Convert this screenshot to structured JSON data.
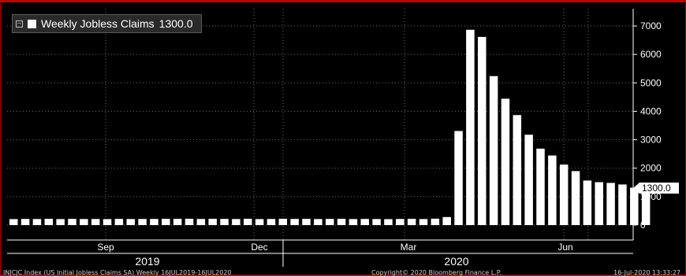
{
  "chart_data": {
    "type": "bar",
    "series": [
      {
        "name": "Weekly Jobless Claims",
        "values": [
          210,
          215,
          212,
          220,
          210,
          218,
          212,
          214,
          210,
          216,
          212,
          214,
          215,
          220,
          218,
          222,
          214,
          220,
          216,
          212,
          222,
          210,
          214,
          222,
          215,
          218,
          212,
          216,
          220,
          211,
          215,
          212,
          208,
          214,
          218,
          211,
          225,
          282,
          3307,
          6867,
          6615,
          5237,
          4442,
          3867,
          3176,
          2687,
          2446,
          2126,
          1897,
          1566,
          1508,
          1482,
          1427,
          1314,
          1300
        ]
      }
    ],
    "last_value": 1300,
    "last_value_label": "1300.0",
    "legend_title": "Weekly Jobless Claims",
    "legend_value": "1300.0",
    "y_ticks": [
      "7000",
      "6000",
      "5000",
      "4000",
      "3000",
      "2000",
      "1000",
      "0"
    ],
    "ylim": [
      -350,
      7400
    ],
    "x_month_labels": [
      "Sep",
      "Dec",
      "Mar",
      "Jun"
    ],
    "x_year_labels": [
      "2019",
      "2020"
    ],
    "y_axis_side": "right",
    "grid": "dashed"
  },
  "footer": {
    "left": "INJCJC Index (US Initial Jobless Claims SA)  Weekly 16JUL2019-16JUL2020",
    "center": "Copyright© 2020 Bloomberg Finance L.P.",
    "right": "16-Jul-2020 13:33:27"
  },
  "colors": {
    "background": "#000000",
    "bars": "#ffffff",
    "grid": "#6e6e6e",
    "frame": "#c00000"
  }
}
